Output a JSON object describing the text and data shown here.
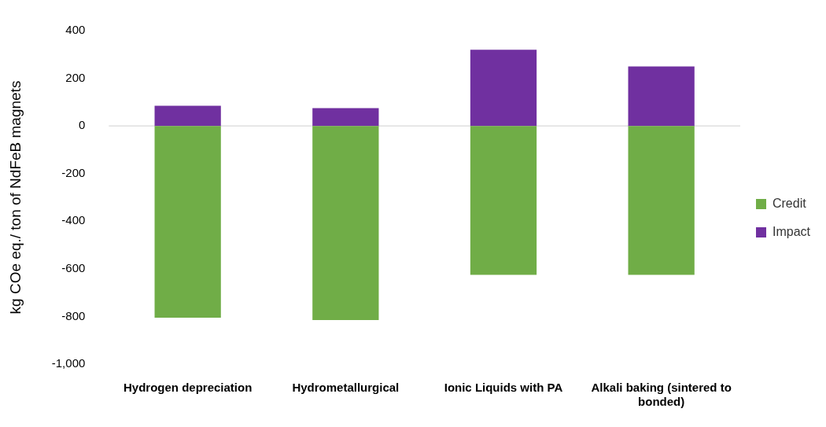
{
  "chart_data": {
    "type": "bar",
    "stacked": true,
    "ylabel": "kg COe eq./ ton of NdFeB magnets",
    "categories": [
      "Hydrogen depreciation",
      "Hydrometallurgical",
      "Ionic Liquids with PA",
      "Alkali baking (sintered to bonded)"
    ],
    "series": [
      {
        "name": "Credit",
        "color": "#70ad47",
        "values": [
          -805,
          -815,
          -625,
          -625
        ]
      },
      {
        "name": "Impact",
        "color": "#7030a0",
        "values": [
          85,
          75,
          320,
          250
        ]
      }
    ],
    "ylim": [
      -1000,
      400
    ],
    "yticks": [
      {
        "value": -1000,
        "label": "-1,000"
      },
      -800,
      -600,
      -400,
      -200,
      0,
      200,
      400
    ],
    "ref_lines": [
      {
        "axis": "y",
        "value": 0,
        "color": "#d9d9d9"
      }
    ],
    "grid": false,
    "legend": "right"
  }
}
